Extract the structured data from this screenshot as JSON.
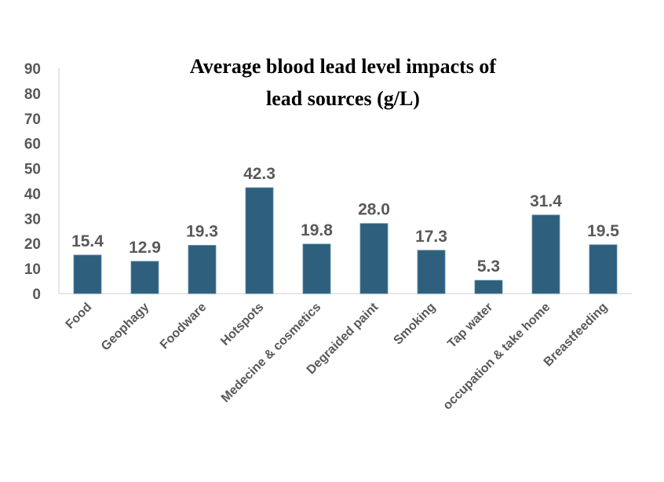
{
  "chart_data": {
    "type": "bar",
    "title": "Average blood lead level impacts of lead sources (g/L)",
    "title_lines": [
      "Average blood lead level impacts of",
      "lead sources (g/L)"
    ],
    "xlabel": "",
    "ylabel": "",
    "categories": [
      "Food",
      "Geophagy",
      "Foodware",
      "Hotspots",
      "Medecine & cosmetics",
      "Degraided paint",
      "Smoking",
      "Tap water",
      "occupation & take home",
      "Breastfeeding"
    ],
    "values": [
      15.4,
      12.9,
      19.3,
      42.3,
      19.8,
      28.0,
      17.3,
      5.3,
      31.4,
      19.5
    ],
    "data_labels": [
      "15.4",
      "12.9",
      "19.3",
      "42.3",
      "19.8",
      "28.0",
      "17.3",
      "5.3",
      "31.4",
      "19.5"
    ],
    "ylim": [
      0,
      90
    ],
    "yticks": [
      0,
      10,
      20,
      30,
      40,
      50,
      60,
      70,
      80,
      90
    ],
    "grid": false,
    "legend": "none",
    "colors": {
      "bar": "#2e5f7d",
      "labels": "#595959",
      "title": "#000000",
      "axis": "#d9d9d9"
    }
  }
}
